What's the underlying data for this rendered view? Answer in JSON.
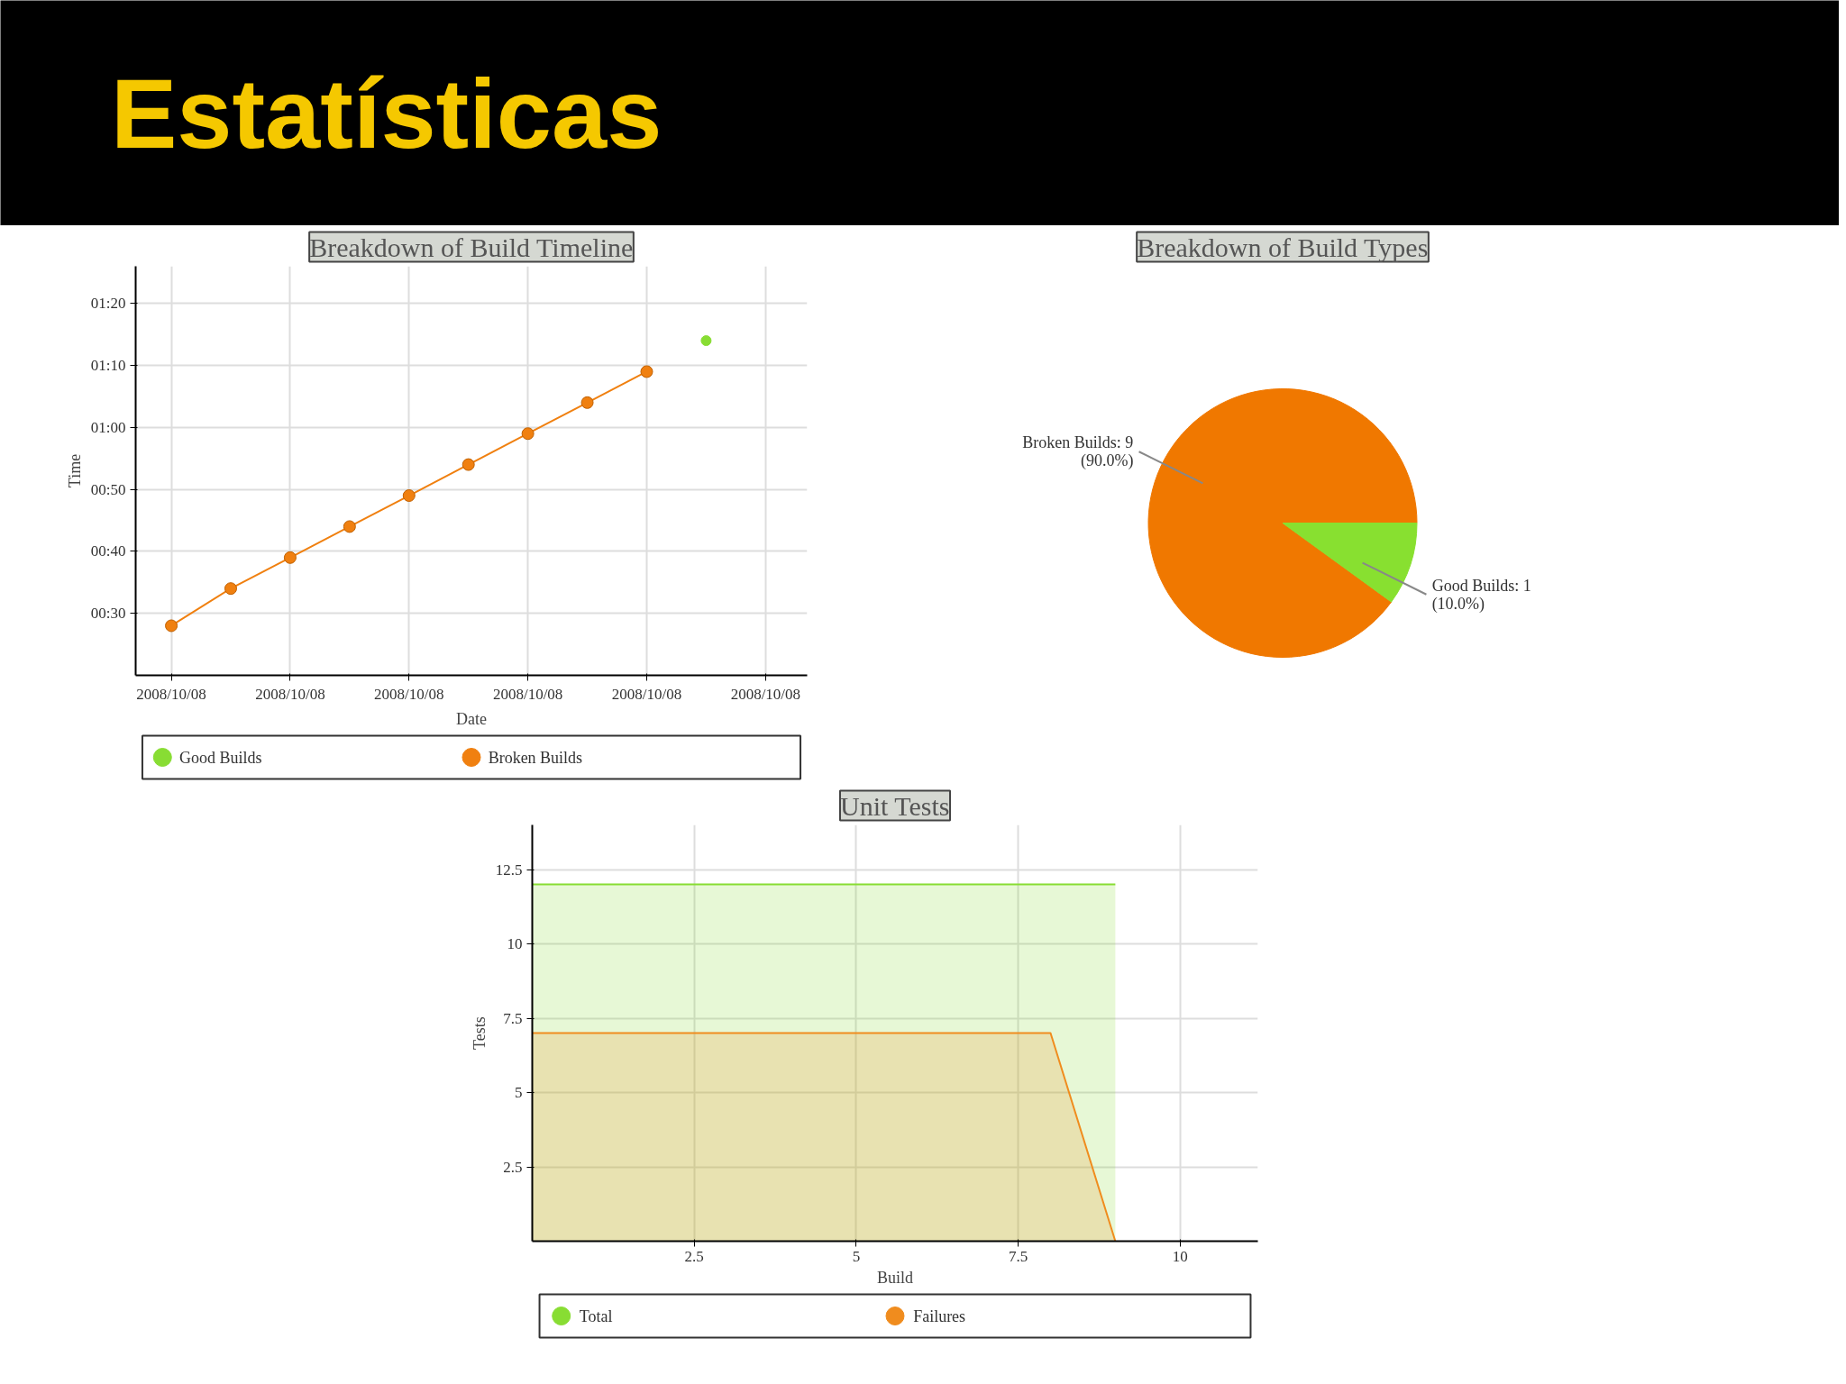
{
  "chart_data": [
    {
      "type": "other",
      "title": "Estatísticas"
    },
    {
      "type": "line",
      "title": "Breakdown of Build Timeline",
      "xlabel": "Date",
      "ylabel": "Time",
      "ylim": [
        20,
        86
      ],
      "categories": [
        "2008/10/08",
        null,
        "2008/10/08",
        null,
        "2008/10/08",
        null,
        "2008/10/08",
        null,
        "2008/10/08",
        null,
        "2008/10/08"
      ],
      "yticks": [
        {
          "value": 30,
          "label": "00:30"
        },
        {
          "value": 40,
          "label": "00:40"
        },
        {
          "value": 50,
          "label": "00:50"
        },
        {
          "value": 60,
          "label": "01:00"
        },
        {
          "value": 70,
          "label": "01:10"
        },
        {
          "value": 80,
          "label": "01:20"
        }
      ],
      "grid": true,
      "legend": "bottom",
      "marker": "circle",
      "line_style": "solid",
      "series": [
        {
          "name": "Good Builds",
          "type": "scatter",
          "color": "#88dd33",
          "values": [
            null,
            null,
            null,
            null,
            null,
            null,
            null,
            null,
            null,
            74,
            null
          ]
        },
        {
          "name": "Broken Builds",
          "type": "line",
          "color": "#f08010",
          "values": [
            28,
            34,
            39,
            44,
            49,
            54,
            59,
            64,
            69,
            null,
            null
          ]
        }
      ]
    },
    {
      "type": "pie",
      "title": "Breakdown of Build Types",
      "categories": [
        "Broken Builds: 9",
        "Good Builds: 1"
      ],
      "values": [
        90,
        10
      ],
      "colors": [
        "#f07800",
        "#88e030"
      ],
      "value_labels": [
        "(90.0%)",
        "(10.0%)"
      ]
    },
    {
      "type": "area",
      "title": "Unit Tests",
      "xlabel": "Build",
      "ylabel": "Tests",
      "xlim": [
        0,
        11.2
      ],
      "ylim": [
        0,
        14
      ],
      "xticks": [
        2.5,
        5,
        7.5,
        10
      ],
      "yticks": [
        2.5,
        5,
        7.5,
        10,
        12.5
      ],
      "grid": true,
      "legend": "bottom",
      "series": [
        {
          "name": "Total",
          "color": "#88dd33",
          "x": [
            0,
            9
          ],
          "values": [
            12,
            12
          ]
        },
        {
          "name": "Failures",
          "color": "#f08c1e",
          "x": [
            0,
            8,
            9
          ],
          "values": [
            7,
            7,
            0
          ]
        }
      ]
    }
  ]
}
